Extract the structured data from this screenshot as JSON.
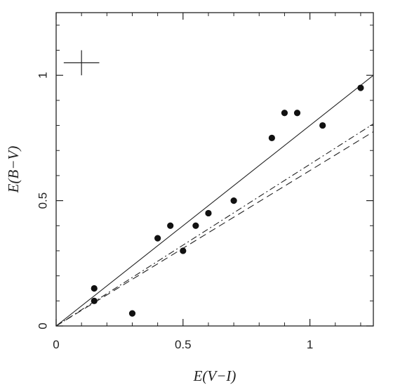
{
  "chart_data": {
    "type": "scatter",
    "title": "",
    "xlabel": "E(V−I)",
    "ylabel": "E(B−V)",
    "xlim": [
      0,
      1.25
    ],
    "ylim": [
      0,
      1.25
    ],
    "xticks": [
      0,
      0.5,
      1
    ],
    "yticks": [
      0,
      0.5,
      1
    ],
    "xtick_labels": [
      "0",
      "0.5",
      "1"
    ],
    "ytick_labels": [
      "0",
      "0.5",
      "1"
    ],
    "grid": false,
    "points": [
      {
        "x": 0.15,
        "y": 0.15
      },
      {
        "x": 0.15,
        "y": 0.1
      },
      {
        "x": 0.3,
        "y": 0.05
      },
      {
        "x": 0.4,
        "y": 0.35
      },
      {
        "x": 0.45,
        "y": 0.4
      },
      {
        "x": 0.5,
        "y": 0.3
      },
      {
        "x": 0.55,
        "y": 0.4
      },
      {
        "x": 0.6,
        "y": 0.45
      },
      {
        "x": 0.7,
        "y": 0.5
      },
      {
        "x": 0.85,
        "y": 0.75
      },
      {
        "x": 0.9,
        "y": 0.85
      },
      {
        "x": 0.95,
        "y": 0.85
      },
      {
        "x": 1.05,
        "y": 0.8
      },
      {
        "x": 1.2,
        "y": 0.95
      }
    ],
    "lines": [
      {
        "style": "solid",
        "slope": 0.8
      },
      {
        "style": "dash-dot",
        "slope": 0.645
      },
      {
        "style": "dashed",
        "slope": 0.62
      }
    ],
    "error_bar_marker": {
      "x": 0.1,
      "y": 1.05,
      "x_err": 0.07,
      "y_err": 0.05
    }
  }
}
